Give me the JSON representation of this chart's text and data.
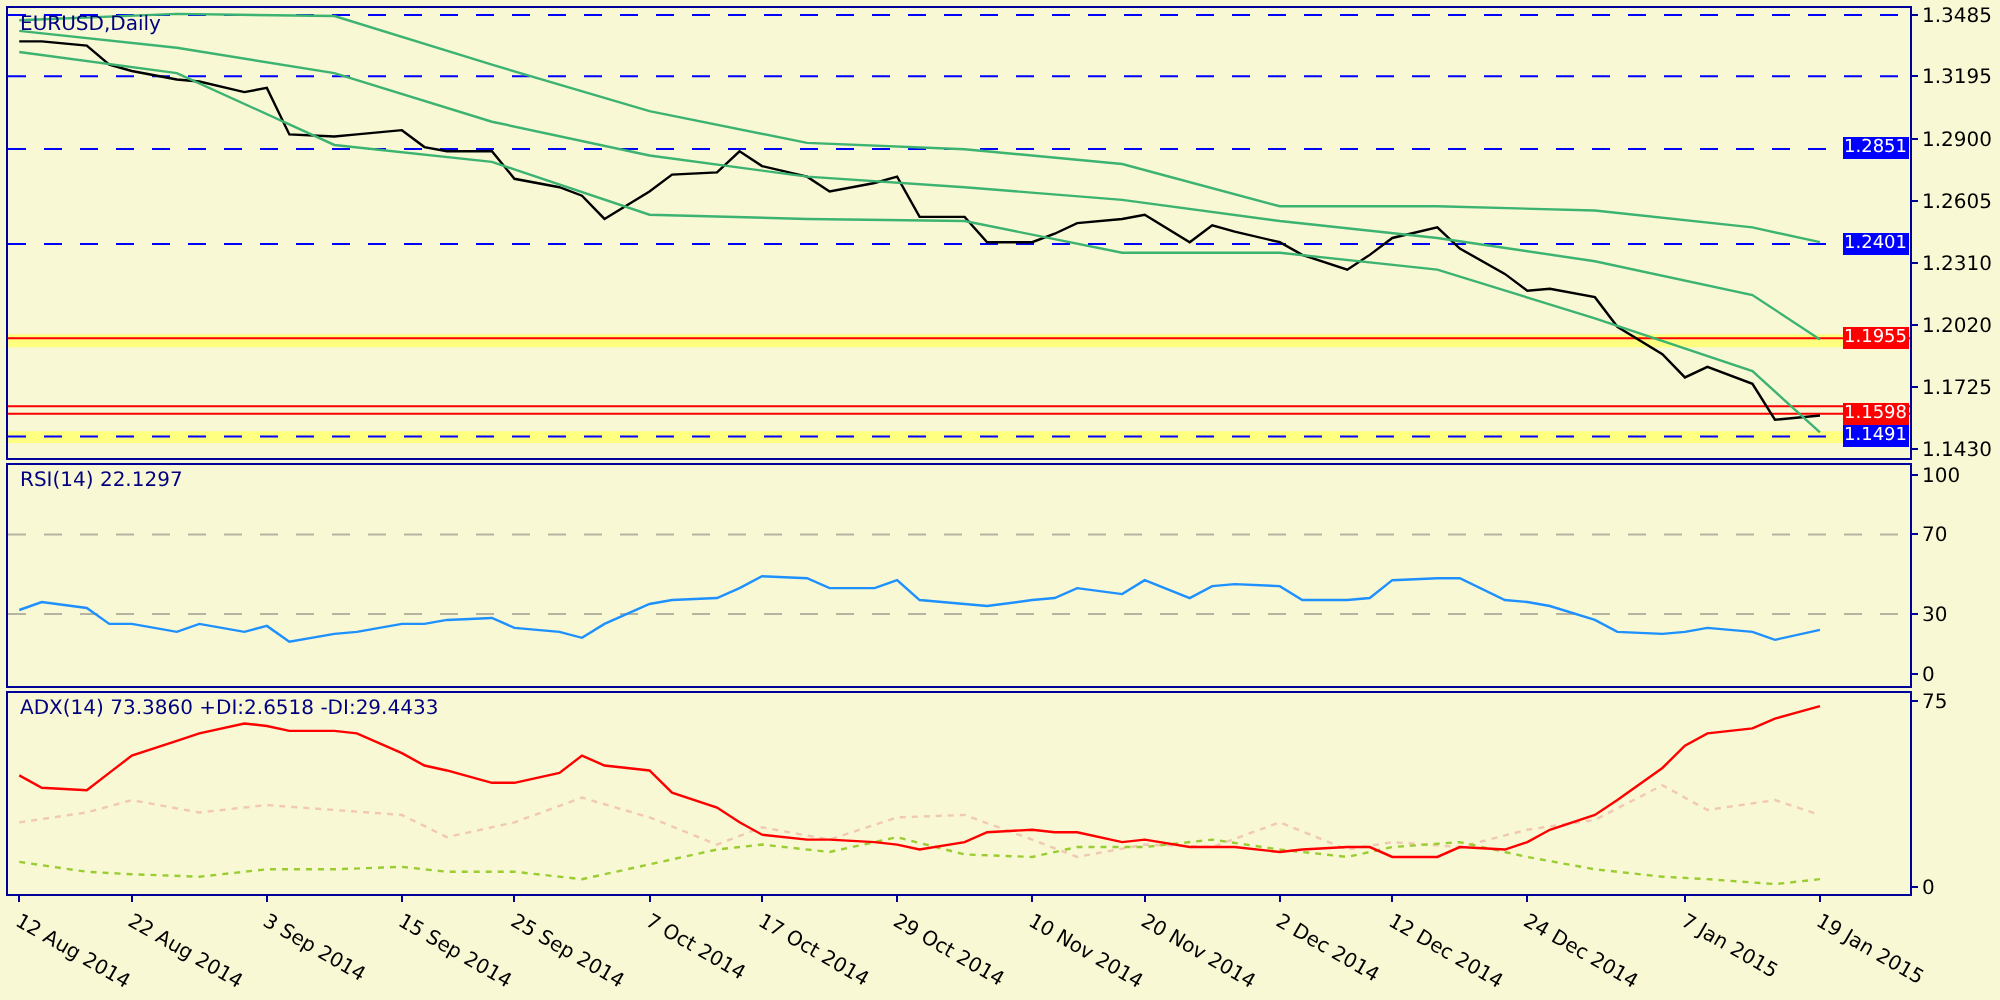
{
  "chart_data": [
    {
      "type": "line",
      "title": "EURUSD,Daily",
      "tick_labels": "y",
      "xlim": [
        "2014-08-11",
        "2015-01-27"
      ],
      "ylim": [
        1.139,
        1.3518
      ],
      "yticks": [
        1.3485,
        1.3195,
        {
          "value": 1.29,
          "label": "1.2900"
        },
        1.2605,
        {
          "value": 1.231,
          "label": "1.2310"
        },
        {
          "value": 1.202,
          "label": "1.2020"
        },
        1.1725,
        {
          "value": 1.143,
          "label": "1.1430"
        }
      ],
      "x": [
        "2014-08-12",
        "2014-08-14",
        "2014-08-18",
        "2014-08-20",
        "2014-08-22",
        "2014-08-26",
        "2014-08-28",
        "2014-09-01",
        "2014-09-03",
        "2014-09-05",
        "2014-09-09",
        "2014-09-11",
        "2014-09-15",
        "2014-09-17",
        "2014-09-19",
        "2014-09-23",
        "2014-09-25",
        "2014-09-29",
        "2014-10-01",
        "2014-10-03",
        "2014-10-07",
        "2014-10-09",
        "2014-10-13",
        "2014-10-15",
        "2014-10-17",
        "2014-10-21",
        "2014-10-23",
        "2014-10-27",
        "2014-10-29",
        "2014-10-31",
        "2014-11-04",
        "2014-11-06",
        "2014-11-10",
        "2014-11-12",
        "2014-11-14",
        "2014-11-18",
        "2014-11-20",
        "2014-11-24",
        "2014-11-26",
        "2014-11-28",
        "2014-12-02",
        "2014-12-04",
        "2014-12-08",
        "2014-12-10",
        "2014-12-12",
        "2014-12-16",
        "2014-12-18",
        "2014-12-22",
        "2014-12-24",
        "2014-12-26",
        "2014-12-30",
        "2015-01-01",
        "2015-01-05",
        "2015-01-07",
        "2015-01-09",
        "2015-01-13",
        "2015-01-15",
        "2015-01-19"
      ],
      "series": [
        {
          "color": "#000000",
          "values": [
            1.336,
            1.336,
            1.334,
            1.325,
            1.322,
            1.318,
            1.317,
            1.312,
            1.314,
            1.292,
            1.291,
            1.292,
            1.294,
            1.286,
            1.284,
            1.284,
            1.271,
            1.267,
            1.263,
            1.252,
            1.265,
            1.273,
            1.274,
            1.284,
            1.277,
            1.272,
            1.265,
            1.269,
            1.272,
            1.253,
            1.253,
            1.241,
            1.241,
            1.245,
            1.25,
            1.252,
            1.254,
            1.241,
            1.249,
            1.246,
            1.241,
            1.235,
            1.228,
            1.235,
            1.243,
            1.248,
            1.238,
            1.226,
            1.218,
            1.219,
            1.215,
            1.201,
            1.188,
            1.177,
            1.182,
            1.174,
            1.157,
            1.159
          ]
        },
        {
          "color": "#3cb371",
          "x": [
            "2014-08-12",
            "2014-08-26",
            "2014-09-09",
            "2014-09-23",
            "2014-10-07",
            "2014-10-21",
            "2014-11-04",
            "2014-11-18",
            "2014-12-02",
            "2014-12-16",
            "2014-12-30",
            "2015-01-13",
            "2015-01-19"
          ],
          "values": [
            1.346,
            1.349,
            1.348,
            1.325,
            1.303,
            1.288,
            1.285,
            1.278,
            1.258,
            1.258,
            1.256,
            1.248,
            1.241
          ]
        },
        {
          "color": "#3cb371",
          "x": [
            "2014-08-12",
            "2014-08-26",
            "2014-09-09",
            "2014-09-23",
            "2014-10-07",
            "2014-10-21",
            "2014-11-04",
            "2014-11-18",
            "2014-12-02",
            "2014-12-16",
            "2014-12-30",
            "2015-01-13",
            "2015-01-19"
          ],
          "values": [
            1.341,
            1.333,
            1.321,
            1.298,
            1.282,
            1.272,
            1.267,
            1.261,
            1.251,
            1.243,
            1.232,
            1.216,
            1.195
          ]
        },
        {
          "color": "#3cb371",
          "x": [
            "2014-08-12",
            "2014-08-26",
            "2014-09-09",
            "2014-09-23",
            "2014-10-07",
            "2014-10-21",
            "2014-11-04",
            "2014-11-18",
            "2014-12-02",
            "2014-12-16",
            "2014-12-30",
            "2015-01-13",
            "2015-01-19"
          ],
          "values": [
            1.331,
            1.321,
            1.287,
            1.279,
            1.254,
            1.252,
            1.251,
            1.236,
            1.236,
            1.228,
            1.205,
            1.18,
            1.151
          ]
        }
      ],
      "bands": [
        {
          "axis": "y",
          "from": 1.1913,
          "to": 1.1975,
          "color": "#ffff80"
        },
        {
          "axis": "y",
          "from": 1.146,
          "to": 1.1515,
          "color": "#ffff80"
        }
      ],
      "ref_lines": [
        {
          "axis": "y",
          "value": 1.3485,
          "color": "#0000ff",
          "line_style": "dashed"
        },
        {
          "axis": "y",
          "value": 1.3195,
          "color": "#0000ff",
          "line_style": "dashed"
        },
        {
          "axis": "y",
          "value": 1.2851,
          "label": "1.2851",
          "color": "#0000ff",
          "line_style": "dashed"
        },
        {
          "axis": "y",
          "value": 1.2401,
          "label": "1.2401",
          "color": "#0000ff",
          "line_style": "dashed"
        },
        {
          "axis": "y",
          "value": 1.1955,
          "label": "1.1955",
          "color": "#ff0000",
          "line_style": "solid"
        },
        {
          "axis": "y",
          "value": 1.1634,
          "color": "#ff0000",
          "line_style": "solid"
        },
        {
          "axis": "y",
          "value": 1.1598,
          "label": "1.1598",
          "color": "#ff0000",
          "line_style": "solid"
        },
        {
          "axis": "y",
          "value": 1.1491,
          "label": "1.1491",
          "color": "#0000ff",
          "line_style": "dashed"
        }
      ]
    },
    {
      "type": "line",
      "title": "RSI(14) 22.1297",
      "tick_labels": "y",
      "xlim": [
        "2014-08-11",
        "2015-01-27"
      ],
      "ylim": [
        -6,
        105
      ],
      "yticks": [
        0,
        30,
        70,
        100
      ],
      "x": [
        "2014-08-12",
        "2014-08-14",
        "2014-08-18",
        "2014-08-20",
        "2014-08-22",
        "2014-08-26",
        "2014-08-28",
        "2014-09-01",
        "2014-09-03",
        "2014-09-05",
        "2014-09-09",
        "2014-09-11",
        "2014-09-15",
        "2014-09-17",
        "2014-09-19",
        "2014-09-23",
        "2014-09-25",
        "2014-09-29",
        "2014-10-01",
        "2014-10-03",
        "2014-10-07",
        "2014-10-09",
        "2014-10-13",
        "2014-10-15",
        "2014-10-17",
        "2014-10-21",
        "2014-10-23",
        "2014-10-27",
        "2014-10-29",
        "2014-10-31",
        "2014-11-04",
        "2014-11-06",
        "2014-11-10",
        "2014-11-12",
        "2014-11-14",
        "2014-11-18",
        "2014-11-20",
        "2014-11-24",
        "2014-11-26",
        "2014-11-28",
        "2014-12-02",
        "2014-12-04",
        "2014-12-08",
        "2014-12-10",
        "2014-12-12",
        "2014-12-16",
        "2014-12-18",
        "2014-12-22",
        "2014-12-24",
        "2014-12-26",
        "2014-12-30",
        "2015-01-01",
        "2015-01-05",
        "2015-01-07",
        "2015-01-09",
        "2015-01-13",
        "2015-01-15",
        "2015-01-19"
      ],
      "series": [
        {
          "color": "#1e90ff",
          "values": [
            32,
            36,
            33,
            25,
            25,
            21,
            25,
            21,
            24,
            16,
            20,
            21,
            25,
            25,
            27,
            28,
            23,
            21,
            18,
            25,
            35,
            37,
            38,
            43,
            49,
            48,
            43,
            43,
            47,
            37,
            35,
            34,
            37,
            38,
            43,
            40,
            47,
            38,
            44,
            45,
            44,
            37,
            37,
            38,
            47,
            48,
            48,
            37,
            36,
            34,
            27,
            21,
            20,
            21,
            23,
            21,
            17,
            22
          ]
        }
      ],
      "ref_lines": [
        {
          "axis": "y",
          "value": 70,
          "color": "#b4b4a0",
          "line_style": "dashed"
        },
        {
          "axis": "y",
          "value": 30,
          "color": "#b4b4a0",
          "line_style": "dashed"
        }
      ]
    },
    {
      "type": "line",
      "title": "ADX(14) 73.3860 +DI:2.6518 -DI:29.4433",
      "xlim": [
        "2014-08-11",
        "2015-01-27"
      ],
      "xticks": [
        {
          "value": "2014-08-12",
          "label": "12 Aug 2014"
        },
        {
          "value": "2014-08-22",
          "label": "22 Aug 2014"
        },
        {
          "value": "2014-09-03",
          "label": "3 Sep 2014"
        },
        {
          "value": "2014-09-15",
          "label": "15 Sep 2014"
        },
        {
          "value": "2014-09-25",
          "label": "25 Sep 2014"
        },
        {
          "value": "2014-10-07",
          "label": "7 Oct 2014"
        },
        {
          "value": "2014-10-17",
          "label": "17 Oct 2014"
        },
        {
          "value": "2014-10-29",
          "label": "29 Oct 2014"
        },
        {
          "value": "2014-11-10",
          "label": "10 Nov 2014"
        },
        {
          "value": "2014-11-20",
          "label": "20 Nov 2014"
        },
        {
          "value": "2014-12-02",
          "label": "2 Dec 2014"
        },
        {
          "value": "2014-12-12",
          "label": "12 Dec 2014"
        },
        {
          "value": "2014-12-24",
          "label": "24 Dec 2014"
        },
        {
          "value": "2015-01-07",
          "label": "7 Jan 2015"
        },
        {
          "value": "2015-01-19",
          "label": "19 Jan 2015"
        }
      ],
      "ylim": [
        -3,
        78.5
      ],
      "yticks": [
        0,
        75
      ],
      "x": [
        "2014-08-12",
        "2014-08-14",
        "2014-08-18",
        "2014-08-20",
        "2014-08-22",
        "2014-08-26",
        "2014-08-28",
        "2014-09-01",
        "2014-09-03",
        "2014-09-05",
        "2014-09-09",
        "2014-09-11",
        "2014-09-15",
        "2014-09-17",
        "2014-09-19",
        "2014-09-23",
        "2014-09-25",
        "2014-09-29",
        "2014-10-01",
        "2014-10-03",
        "2014-10-07",
        "2014-10-09",
        "2014-10-13",
        "2014-10-15",
        "2014-10-17",
        "2014-10-21",
        "2014-10-23",
        "2014-10-27",
        "2014-10-29",
        "2014-10-31",
        "2014-11-04",
        "2014-11-06",
        "2014-11-10",
        "2014-11-12",
        "2014-11-14",
        "2014-11-18",
        "2014-11-20",
        "2014-11-24",
        "2014-11-26",
        "2014-11-28",
        "2014-12-02",
        "2014-12-04",
        "2014-12-08",
        "2014-12-10",
        "2014-12-12",
        "2014-12-16",
        "2014-12-18",
        "2014-12-22",
        "2014-12-24",
        "2014-12-26",
        "2014-12-30",
        "2015-01-01",
        "2015-01-05",
        "2015-01-07",
        "2015-01-09",
        "2015-01-13",
        "2015-01-15",
        "2015-01-19"
      ],
      "series": [
        {
          "color": "#f0c8b4",
          "line_style": "dotted",
          "x": [
            "2014-08-12",
            "2014-08-18",
            "2014-08-22",
            "2014-08-28",
            "2014-09-03",
            "2014-09-09",
            "2014-09-15",
            "2014-09-19",
            "2014-09-25",
            "2014-10-01",
            "2014-10-07",
            "2014-10-13",
            "2014-10-17",
            "2014-10-23",
            "2014-10-29",
            "2014-11-04",
            "2014-11-10",
            "2014-11-14",
            "2014-11-20",
            "2014-11-26",
            "2014-12-02",
            "2014-12-08",
            "2014-12-12",
            "2014-12-18",
            "2014-12-24",
            "2014-12-30",
            "2015-01-05",
            "2015-01-09",
            "2015-01-15",
            "2015-01-19"
          ],
          "values": [
            26,
            30,
            35,
            30,
            33,
            31,
            29,
            20,
            26,
            36,
            28,
            17,
            24,
            19,
            28,
            29,
            19,
            12,
            17,
            16,
            26,
            15,
            18,
            16,
            23,
            27,
            41,
            31,
            35,
            29
          ]
        },
        {
          "color": "#9acd32",
          "line_style": "dotted",
          "x": [
            "2014-08-12",
            "2014-08-18",
            "2014-08-22",
            "2014-08-28",
            "2014-09-03",
            "2014-09-09",
            "2014-09-15",
            "2014-09-19",
            "2014-09-25",
            "2014-10-01",
            "2014-10-07",
            "2014-10-13",
            "2014-10-17",
            "2014-10-23",
            "2014-10-29",
            "2014-11-04",
            "2014-11-10",
            "2014-11-14",
            "2014-11-20",
            "2014-11-26",
            "2014-12-02",
            "2014-12-08",
            "2014-12-12",
            "2014-12-18",
            "2014-12-24",
            "2014-12-30",
            "2015-01-05",
            "2015-01-09",
            "2015-01-15",
            "2015-01-19"
          ],
          "values": [
            10,
            6,
            5,
            4,
            7,
            7,
            8,
            6,
            6,
            3,
            9,
            15,
            17,
            14,
            20,
            13,
            12,
            16,
            16,
            19,
            15,
            12,
            16,
            18,
            12,
            7,
            4,
            3,
            1,
            3
          ]
        },
        {
          "color": "#ff0000",
          "values": [
            45,
            40,
            39,
            46,
            53,
            59,
            62,
            66,
            65,
            63,
            63,
            62,
            54,
            49,
            47,
            42,
            42,
            46,
            53,
            49,
            47,
            38,
            32,
            26,
            21,
            19,
            19,
            18,
            17,
            15,
            18,
            22,
            23,
            22,
            22,
            18,
            19,
            16,
            16,
            16,
            14,
            15,
            16,
            16,
            12,
            12,
            16,
            15,
            18,
            23,
            29,
            35,
            48,
            57,
            62,
            64,
            68,
            73
          ]
        }
      ]
    }
  ]
}
